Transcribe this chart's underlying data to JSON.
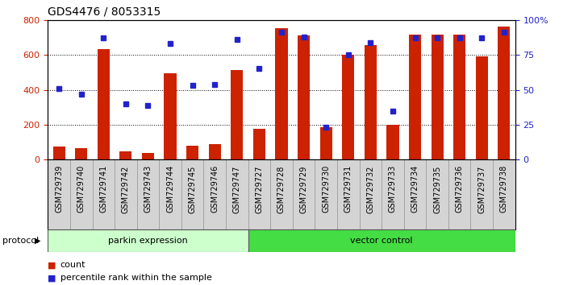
{
  "title": "GDS4476 / 8053315",
  "samples": [
    "GSM729739",
    "GSM729740",
    "GSM729741",
    "GSM729742",
    "GSM729743",
    "GSM729744",
    "GSM729745",
    "GSM729746",
    "GSM729747",
    "GSM729727",
    "GSM729728",
    "GSM729729",
    "GSM729730",
    "GSM729731",
    "GSM729732",
    "GSM729733",
    "GSM729734",
    "GSM729735",
    "GSM729736",
    "GSM729737",
    "GSM729738"
  ],
  "counts": [
    75,
    65,
    635,
    45,
    40,
    495,
    80,
    90,
    515,
    175,
    755,
    710,
    185,
    600,
    655,
    200,
    715,
    715,
    715,
    590,
    760
  ],
  "percentile_pct": [
    51,
    47,
    87,
    40,
    39,
    83,
    53,
    54,
    86,
    65,
    91,
    88,
    23,
    75,
    84,
    35,
    87,
    87,
    87,
    87,
    91
  ],
  "parkin_count": 9,
  "vector_count": 12,
  "bar_color": "#cc2200",
  "dot_color": "#2222cc",
  "left_axis_color": "#cc2200",
  "right_axis_color": "#2222cc",
  "ylim_left": [
    0,
    800
  ],
  "ylim_right": [
    0,
    100
  ],
  "yticks_left": [
    0,
    200,
    400,
    600,
    800
  ],
  "yticks_right": [
    0,
    25,
    50,
    75,
    100
  ],
  "parkin_label": "parkin expression",
  "vector_label": "vector control",
  "protocol_label": "protocol",
  "legend_count": "count",
  "legend_pct": "percentile rank within the sample",
  "bg_color": "#ffffff",
  "title_fontsize": 10,
  "tick_label_fontsize": 7,
  "parkin_color": "#ccffcc",
  "vector_color": "#44dd44",
  "cell_bg": "#d4d4d4"
}
